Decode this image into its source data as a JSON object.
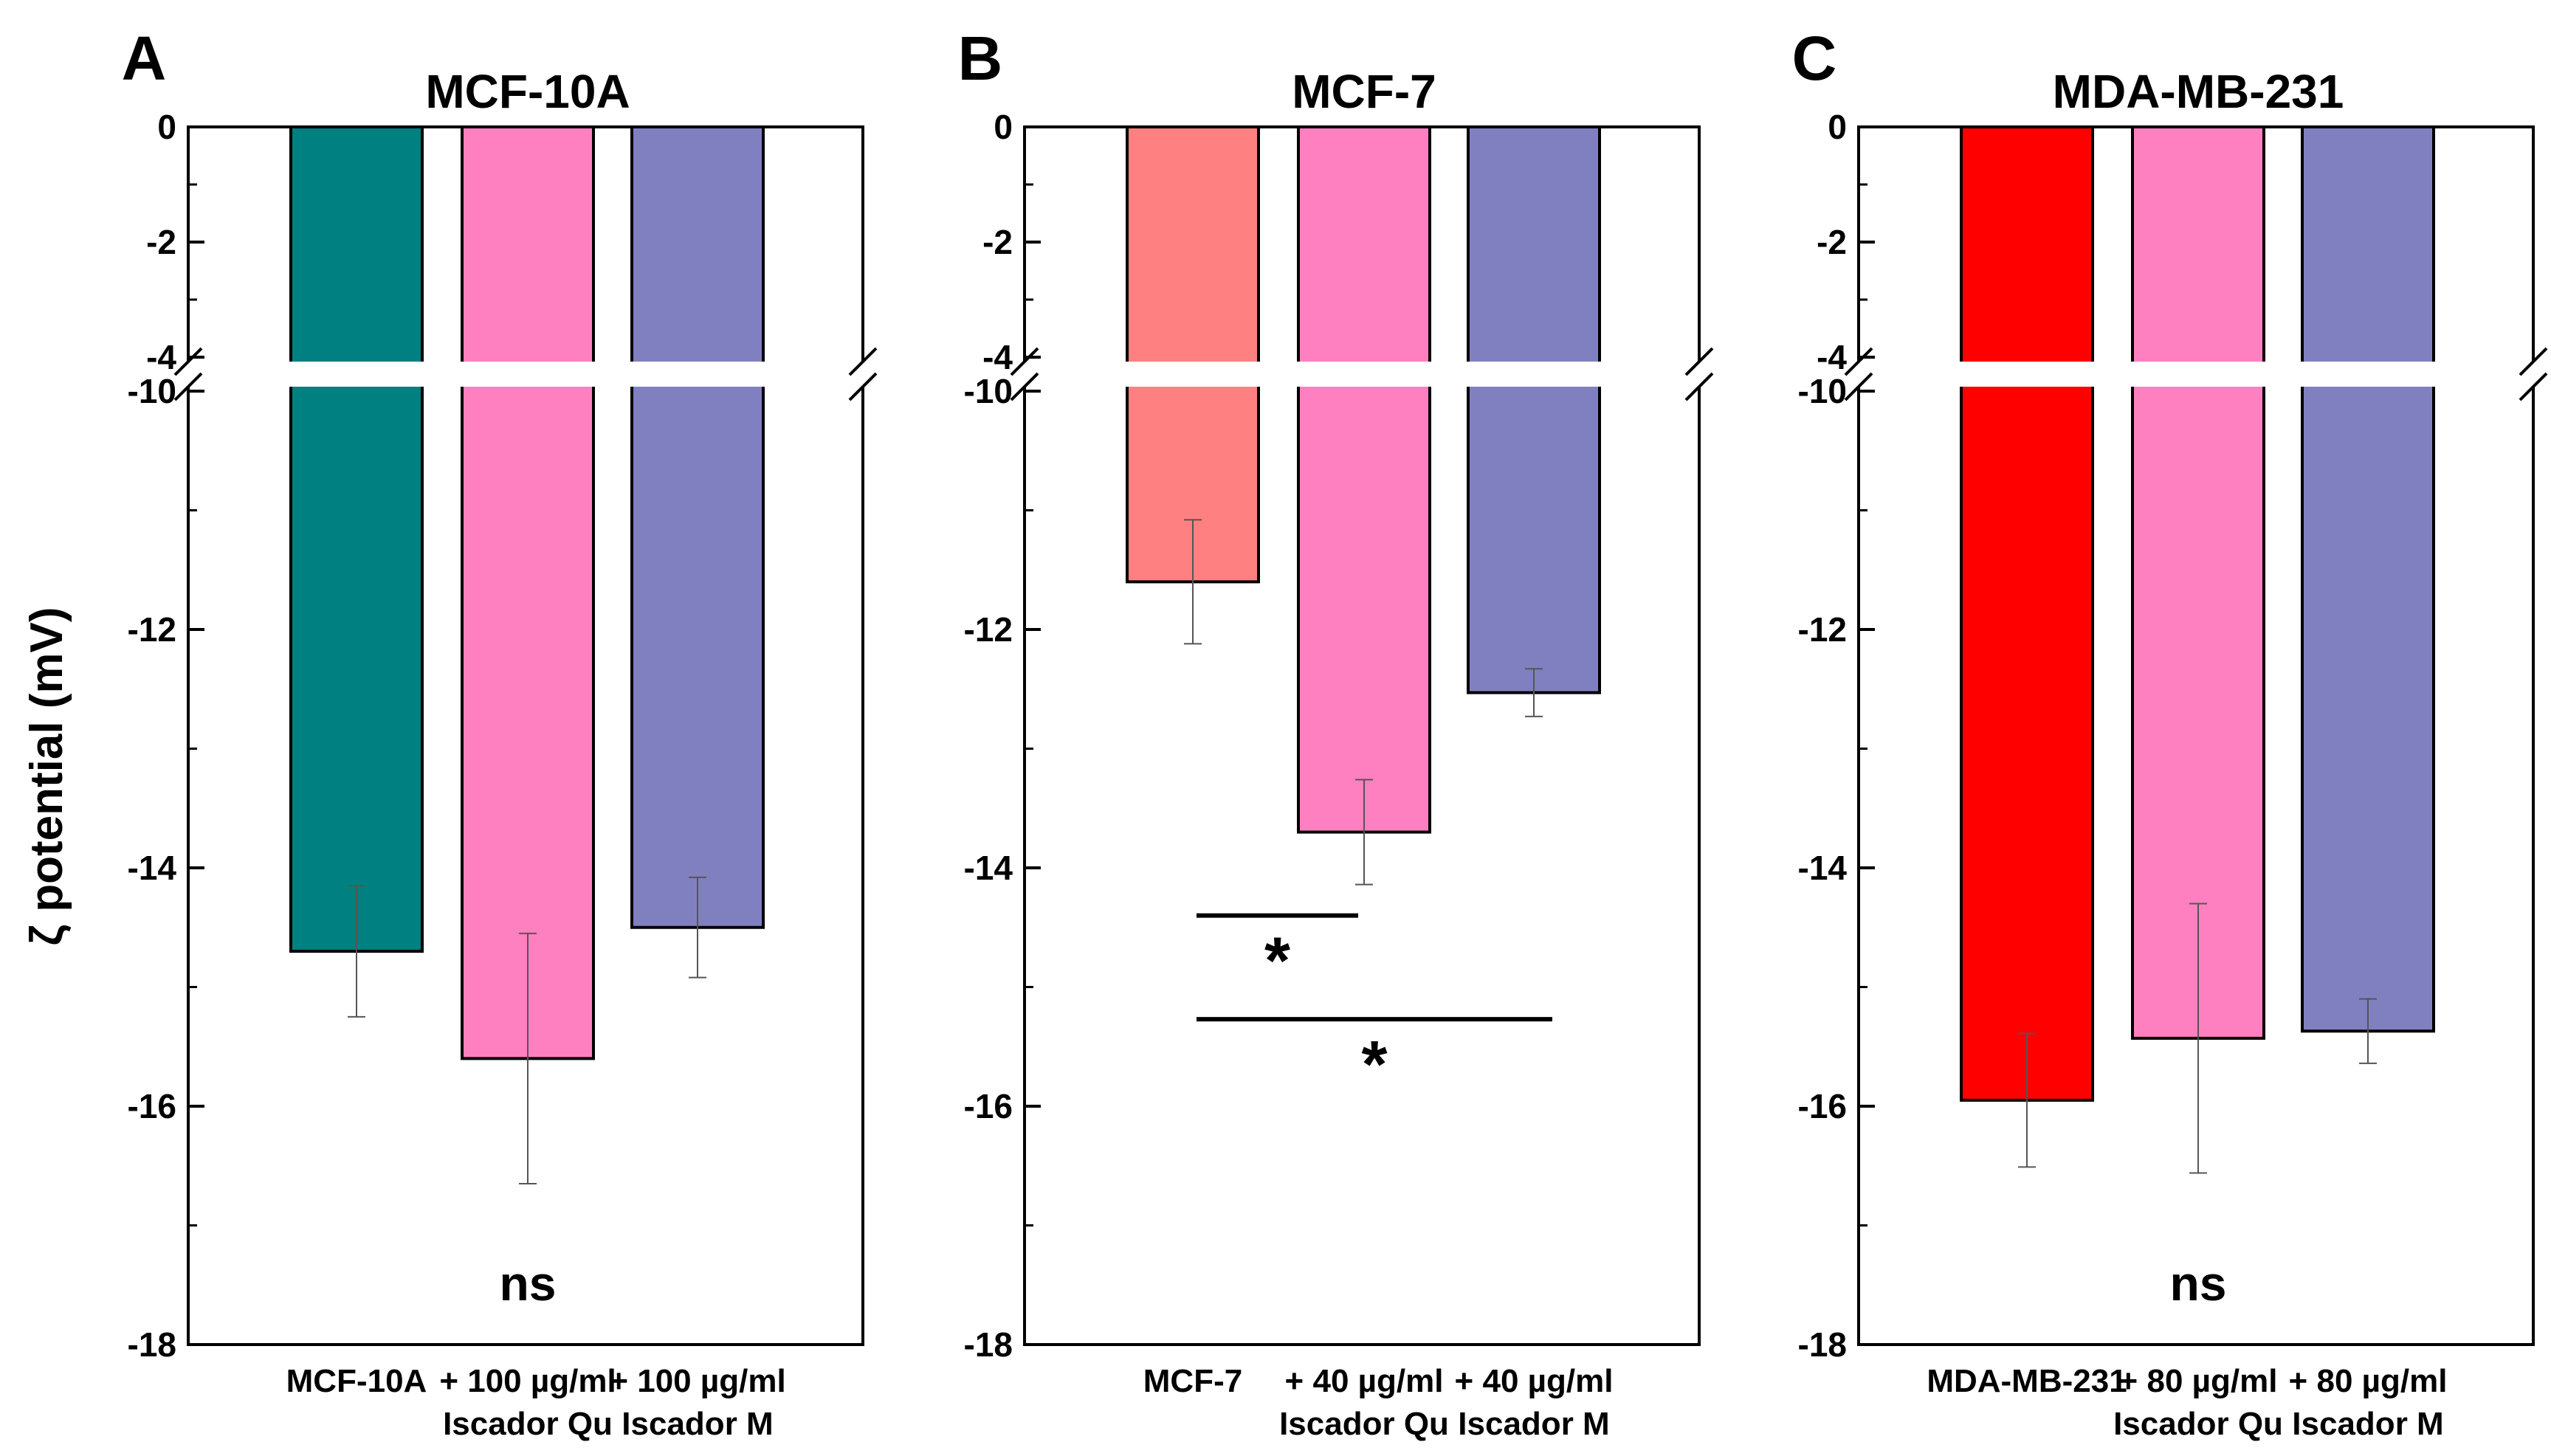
{
  "ylabel": "ζ potential (mV)",
  "chart_data": [
    {
      "type": "bar",
      "panel": "A",
      "title": "MCF-10A",
      "ylabel": "ζ potential (mV)",
      "categories": [
        [
          "MCF-10A"
        ],
        [
          "+ 100 µg/ml",
          "Iscador Qu"
        ],
        [
          "+ 100 µg/ml",
          "Iscador M"
        ]
      ],
      "values": [
        -14.7,
        -15.6,
        -14.5
      ],
      "errors": [
        0.55,
        1.05,
        0.42
      ],
      "colors": [
        "#008080",
        "#ff80c0",
        "#8080c0"
      ],
      "ylim": [
        -18,
        0
      ],
      "axis_break": [
        -4,
        -10
      ],
      "yticks_top": [
        0,
        -2,
        -4
      ],
      "yticks_bottom": [
        -10,
        -12,
        -14,
        -16,
        -18
      ],
      "annotation": "ns",
      "significance": []
    },
    {
      "type": "bar",
      "panel": "B",
      "title": "MCF-7",
      "ylabel": "ζ potential (mV)",
      "categories": [
        [
          "MCF-7"
        ],
        [
          "+ 40 µg/ml",
          "Iscador Qu"
        ],
        [
          "+ 40 µg/ml",
          "Iscador M"
        ]
      ],
      "values": [
        -11.6,
        -13.7,
        -12.53
      ],
      "errors": [
        0.52,
        0.44,
        0.2
      ],
      "colors": [
        "#ff8080",
        "#ff80c0",
        "#8080c0"
      ],
      "ylim": [
        -18,
        0
      ],
      "axis_break": [
        -4,
        -10
      ],
      "yticks_top": [
        0,
        -2,
        -4
      ],
      "yticks_bottom": [
        -10,
        -12,
        -14,
        -16,
        -18
      ],
      "annotation": "",
      "significance": [
        {
          "from": 0,
          "to": 1,
          "y": -14.4,
          "label": "*"
        },
        {
          "from": 0,
          "to": 2,
          "y": -15.27,
          "label": "*"
        }
      ]
    },
    {
      "type": "bar",
      "panel": "C",
      "title": "MDA-MB-231",
      "ylabel": "ζ potential (mV)",
      "categories": [
        [
          "MDA-MB-231"
        ],
        [
          "+ 80 µg/ml",
          "Iscador Qu"
        ],
        [
          "+ 80 µg/ml",
          "Iscador M"
        ]
      ],
      "values": [
        -15.95,
        -15.43,
        -15.37
      ],
      "errors": [
        0.56,
        1.13,
        0.27
      ],
      "colors": [
        "#ff0000",
        "#ff80c0",
        "#8080c0"
      ],
      "ylim": [
        -18,
        0
      ],
      "axis_break": [
        -4,
        -10
      ],
      "yticks_top": [
        0,
        -2,
        -4
      ],
      "yticks_bottom": [
        -10,
        -12,
        -14,
        -16,
        -18
      ],
      "annotation": "ns",
      "significance": []
    }
  ]
}
